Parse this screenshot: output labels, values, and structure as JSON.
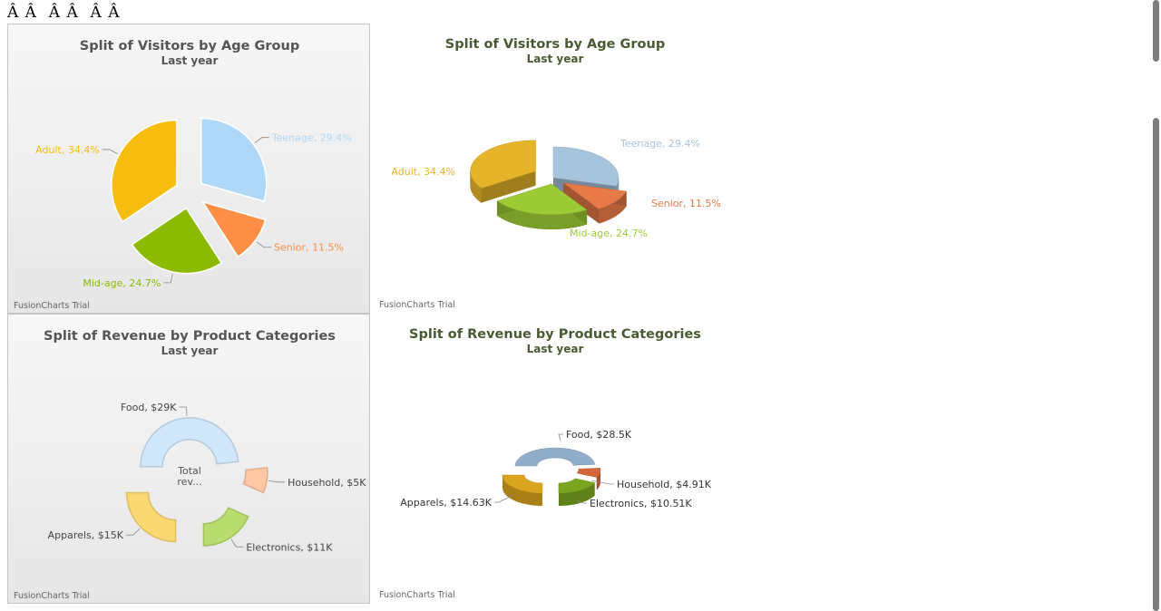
{
  "page": {
    "top_text": "Â Â  Â Â  Â Â",
    "watermark": "FusionCharts Trial"
  },
  "colors": {
    "blue": "#afd8f8",
    "yellow": "#f6bd0f",
    "green": "#8bba00",
    "orange": "#ff8e46",
    "blue3d": "#a7c4dd",
    "title2": "#4a5a32"
  },
  "chart_data": [
    {
      "type": "pie",
      "title": "Split of Visitors by Age Group",
      "subtitle": "Last year",
      "slices": [
        {
          "label": "Teenage",
          "value": 29.4,
          "display": "Teenage, 29.4%",
          "color": "#afd8f8"
        },
        {
          "label": "Senior",
          "value": 11.5,
          "display": "Senior, 11.5%",
          "color": "#ff8e46"
        },
        {
          "label": "Mid-age",
          "value": 24.7,
          "display": "Mid-age, 24.7%",
          "color": "#8bba00"
        },
        {
          "label": "Adult",
          "value": 34.4,
          "display": "Adult, 34.4%",
          "color": "#f6bd0f"
        }
      ]
    },
    {
      "type": "pie",
      "title": "Split of Visitors by Age Group",
      "subtitle": "Last year",
      "slices": [
        {
          "label": "Teenage",
          "value": 29.4,
          "display": "Teenage, 29.4%",
          "color": "#a7c4dd"
        },
        {
          "label": "Senior",
          "value": 11.5,
          "display": "Senior, 11.5%",
          "color": "#e87a47"
        },
        {
          "label": "Mid-age",
          "value": 24.7,
          "display": "Mid-age, 24.7%",
          "color": "#9ccb35"
        },
        {
          "label": "Adult",
          "value": 34.4,
          "display": "Adult, 34.4%",
          "color": "#e6b42a"
        }
      ]
    },
    {
      "type": "pie",
      "title": "Split of Revenue by Product Categories",
      "subtitle": "Last year",
      "center_label": [
        "Total",
        "rev..."
      ],
      "slices": [
        {
          "label": "Food",
          "value": 29,
          "display": "Food, $29K",
          "color": "#cfe6fb"
        },
        {
          "label": "Household",
          "value": 5,
          "display": "Household, $5K",
          "color": "#ffc7a3"
        },
        {
          "label": "Electronics",
          "value": 11,
          "display": "Electronics, $11K",
          "color": "#b8dc6e"
        },
        {
          "label": "Apparels",
          "value": 15,
          "display": "Apparels, $15K",
          "color": "#fbd872"
        }
      ]
    },
    {
      "type": "pie",
      "title": "Split of Revenue by Product Categories",
      "subtitle": "Last year",
      "slices": [
        {
          "label": "Food",
          "value": 28.5,
          "display": "Food, $28.5K",
          "color": "#8facc8"
        },
        {
          "label": "Household",
          "value": 4.91,
          "display": "Household, $4.91K",
          "color": "#d4673a"
        },
        {
          "label": "Electronics",
          "value": 10.51,
          "display": "Electronics, $10.51K",
          "color": "#7aa521"
        },
        {
          "label": "Apparels",
          "value": 14.63,
          "display": "Apparels, $14.63K",
          "color": "#d9a41e"
        }
      ]
    }
  ]
}
